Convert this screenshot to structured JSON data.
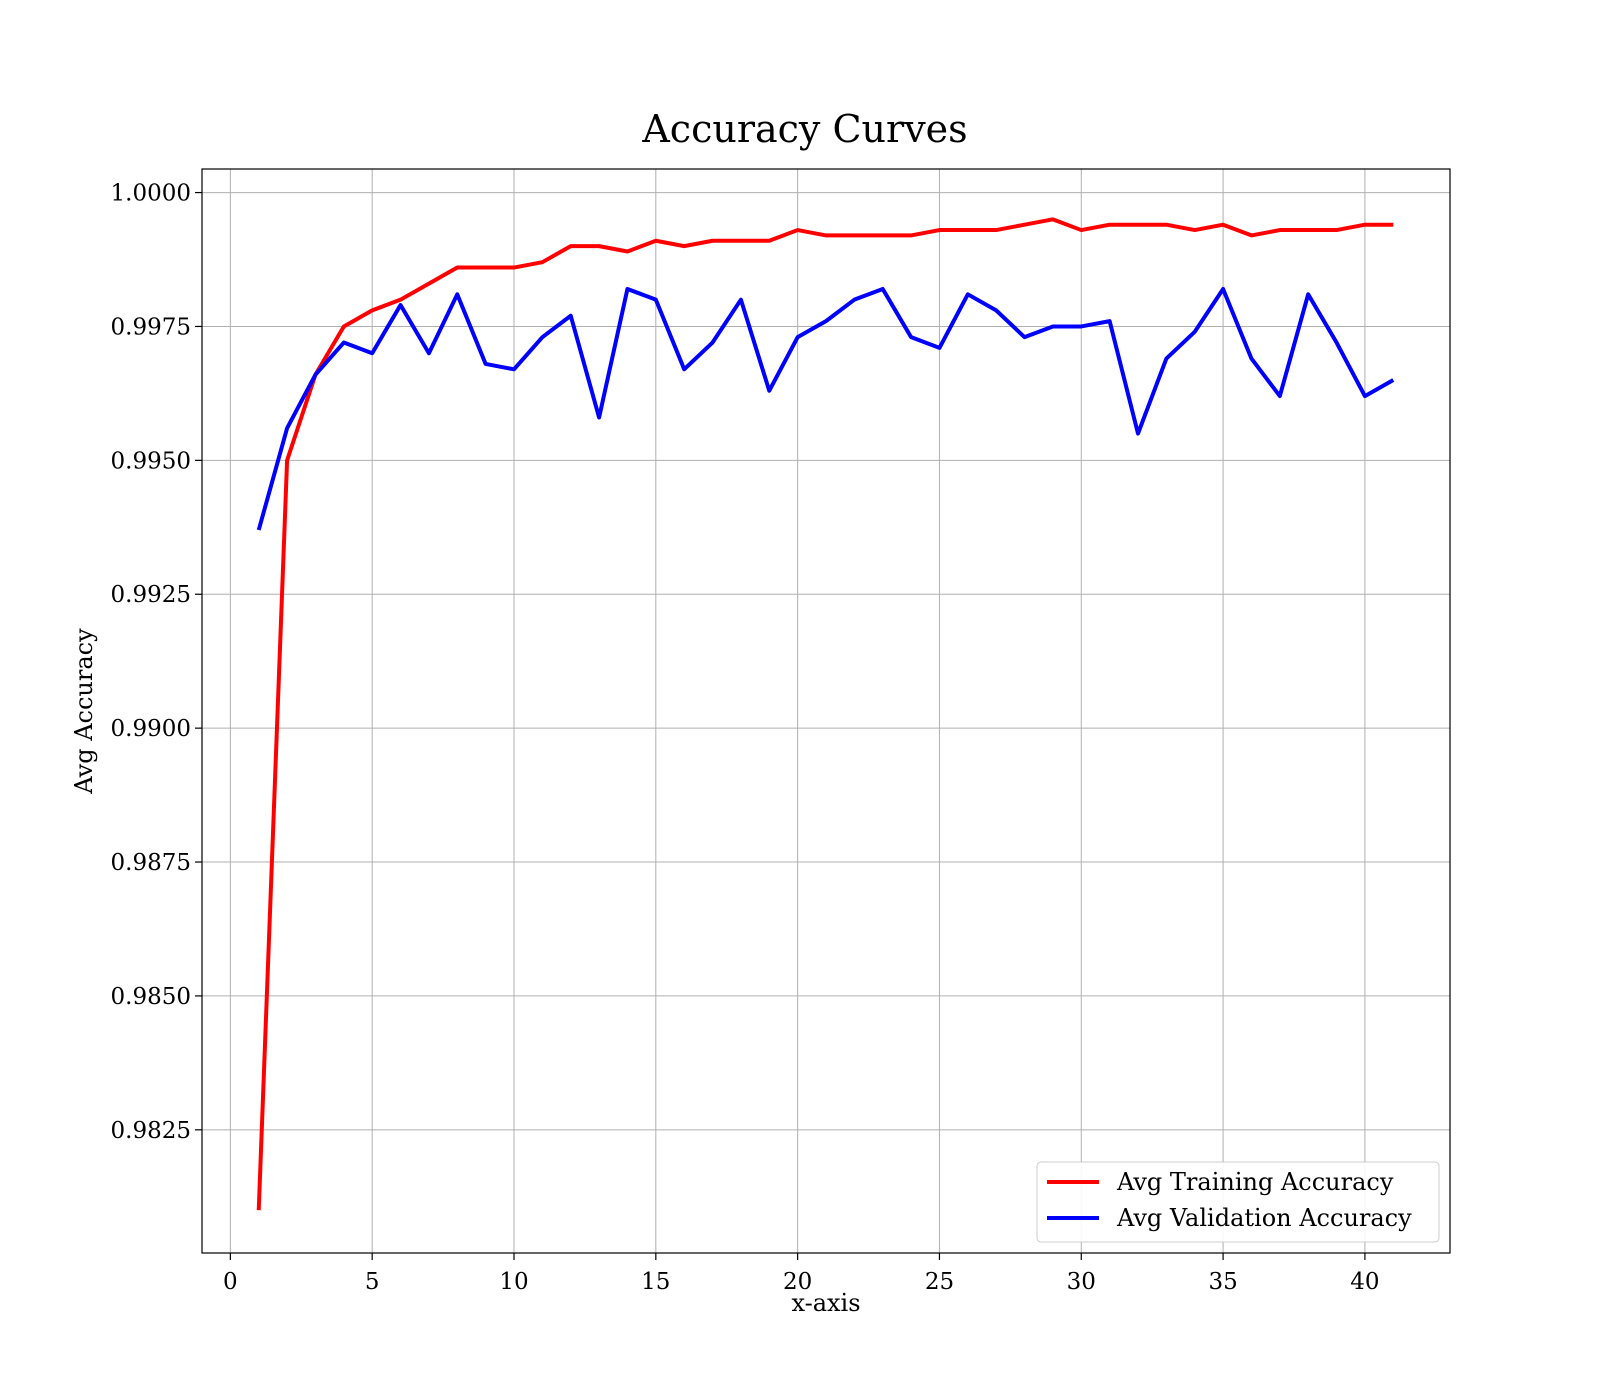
{
  "chart_data": {
    "type": "line",
    "title": "Accuracy Curves",
    "xlabel": "x-axis",
    "ylabel": "Avg Accuracy",
    "xlim": [
      -1,
      43
    ],
    "ylim": [
      0.9802,
      1.00044
    ],
    "xticks": [
      0,
      5,
      10,
      15,
      20,
      25,
      30,
      35,
      40
    ],
    "xtick_labels": [
      "0",
      "5",
      "10",
      "15",
      "20",
      "25",
      "30",
      "35",
      "40"
    ],
    "yticks": [
      0.9825,
      0.985,
      0.9875,
      0.99,
      0.9925,
      0.995,
      0.9975,
      1.0
    ],
    "ytick_labels": [
      "0.9825",
      "0.9850",
      "0.9875",
      "0.9900",
      "0.9925",
      "0.9950",
      "0.9975",
      "1.0000"
    ],
    "grid": true,
    "legend_position": "bottom-right",
    "x": [
      1,
      2,
      3,
      4,
      5,
      6,
      7,
      8,
      9,
      10,
      11,
      12,
      13,
      14,
      15,
      16,
      17,
      18,
      19,
      20,
      21,
      22,
      23,
      24,
      25,
      26,
      27,
      28,
      29,
      30,
      31,
      32,
      33,
      34,
      35,
      36,
      37,
      38,
      39,
      40,
      41
    ],
    "series": [
      {
        "name": "Avg Training Accuracy",
        "color": "#ff0000",
        "values": [
          0.981,
          0.995,
          0.9966,
          0.9975,
          0.9978,
          0.998,
          0.9983,
          0.9986,
          0.9986,
          0.9986,
          0.9987,
          0.999,
          0.999,
          0.9989,
          0.9991,
          0.999,
          0.9991,
          0.9991,
          0.9991,
          0.9993,
          0.9992,
          0.9992,
          0.9992,
          0.9992,
          0.9993,
          0.9993,
          0.9993,
          0.9994,
          0.9995,
          0.9993,
          0.9994,
          0.9994,
          0.9994,
          0.9993,
          0.9994,
          0.9992,
          0.9993,
          0.9993,
          0.9993,
          0.9994,
          0.9994
        ]
      },
      {
        "name": "Avg Validation Accuracy",
        "color": "#0000ff",
        "values": [
          0.9937,
          0.9956,
          0.9966,
          0.9972,
          0.997,
          0.9979,
          0.997,
          0.9981,
          0.9968,
          0.9967,
          0.9973,
          0.9977,
          0.9958,
          0.9982,
          0.998,
          0.9967,
          0.9972,
          0.998,
          0.9963,
          0.9973,
          0.9976,
          0.998,
          0.9982,
          0.9973,
          0.9971,
          0.9981,
          0.9978,
          0.9973,
          0.9975,
          0.9975,
          0.9976,
          0.9955,
          0.9969,
          0.9974,
          0.9982,
          0.9969,
          0.9962,
          0.9981,
          0.9972,
          0.9962,
          0.9965
        ]
      }
    ]
  }
}
